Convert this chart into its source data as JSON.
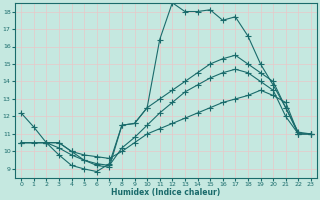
{
  "xlabel": "Humidex (Indice chaleur)",
  "bg_color": "#c5e8e0",
  "grid_color": "#e8c8c8",
  "line_color": "#1a6b6b",
  "xlim": [
    -0.5,
    23.5
  ],
  "ylim": [
    8.5,
    18.5
  ],
  "xticks": [
    0,
    1,
    2,
    3,
    4,
    5,
    6,
    7,
    8,
    9,
    10,
    11,
    12,
    13,
    14,
    15,
    16,
    17,
    18,
    19,
    20,
    21,
    22,
    23
  ],
  "yticks": [
    9,
    10,
    11,
    12,
    13,
    14,
    15,
    16,
    17,
    18
  ],
  "line1_x": [
    0,
    1,
    2,
    3,
    4,
    5,
    6,
    7,
    8,
    9,
    10,
    11,
    12,
    13,
    14,
    15,
    16,
    17,
    18,
    19,
    20,
    21,
    22,
    23
  ],
  "line1_y": [
    12.2,
    11.4,
    10.5,
    9.8,
    9.2,
    9.0,
    8.85,
    9.3,
    11.5,
    11.6,
    12.5,
    16.4,
    18.5,
    18.0,
    18.0,
    18.1,
    17.5,
    17.7,
    16.6,
    15.0,
    13.8,
    12.5,
    11.1,
    11.0
  ],
  "line2_x": [
    0,
    2,
    3,
    4,
    5,
    6,
    7,
    8,
    9,
    10,
    11,
    12,
    13,
    14,
    15,
    16,
    17,
    18,
    19,
    20,
    21,
    22,
    23
  ],
  "line2_y": [
    10.5,
    10.5,
    10.5,
    10.0,
    9.5,
    9.2,
    9.1,
    11.5,
    11.6,
    12.5,
    13.0,
    13.5,
    14.0,
    14.5,
    15.0,
    15.3,
    15.5,
    15.0,
    14.5,
    14.0,
    12.5,
    11.0,
    11.0
  ],
  "line3_x": [
    0,
    2,
    3,
    4,
    5,
    6,
    7,
    8,
    9,
    10,
    11,
    12,
    13,
    14,
    15,
    16,
    17,
    18,
    19,
    20,
    21,
    22,
    23
  ],
  "line3_y": [
    10.5,
    10.5,
    10.2,
    9.8,
    9.5,
    9.3,
    9.2,
    10.2,
    10.8,
    11.5,
    12.2,
    12.8,
    13.4,
    13.8,
    14.2,
    14.5,
    14.7,
    14.5,
    14.0,
    13.5,
    12.0,
    11.0,
    11.0
  ],
  "line4_x": [
    0,
    1,
    2,
    3,
    4,
    5,
    6,
    7,
    8,
    9,
    10,
    11,
    12,
    13,
    14,
    15,
    16,
    17,
    18,
    19,
    20,
    21,
    22,
    23
  ],
  "line4_y": [
    10.5,
    10.5,
    10.5,
    10.5,
    10.0,
    9.8,
    9.7,
    9.6,
    10.0,
    10.5,
    11.0,
    11.3,
    11.6,
    11.9,
    12.2,
    12.5,
    12.8,
    13.0,
    13.2,
    13.5,
    13.2,
    12.8,
    11.0,
    11.0
  ]
}
